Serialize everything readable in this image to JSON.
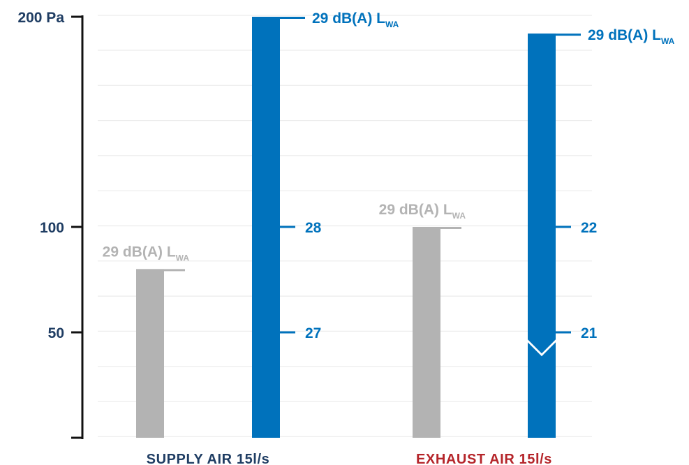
{
  "colors": {
    "axis": "#111111",
    "axis_label": "#1f3d63",
    "grid": "#ececec",
    "grey_bar": "#b3b3b3",
    "blue_bar": "#0072bc",
    "supply_label": "#1f3d63",
    "exhaust_label": "#b5252a"
  },
  "chart_data": {
    "type": "bar",
    "categories": [
      "SUPPLY AIR 15l/s",
      "EXHAUST AIR 15l/s"
    ],
    "y_axis": {
      "scale": "pressure (Pa)",
      "ticks": [
        {
          "value": 200,
          "label": "200 Pa"
        },
        {
          "value": 100,
          "label": "100"
        },
        {
          "value": 50,
          "label": "50"
        }
      ],
      "ylim": [
        0,
        200
      ]
    },
    "bars": [
      {
        "category_index": 0,
        "kind": "grey",
        "top": 80,
        "sound_label": {
          "main": "29 dB(A) L",
          "sub": "WA"
        }
      },
      {
        "category_index": 0,
        "kind": "blue",
        "top": 200,
        "sound_label": {
          "main": "29 dB(A) L",
          "sub": "WA"
        },
        "scale_ticks": [
          {
            "value": 100,
            "label": "28"
          },
          {
            "value": 50,
            "label": "27"
          }
        ]
      },
      {
        "category_index": 1,
        "kind": "grey",
        "top": 100,
        "sound_label": {
          "main": "29 dB(A) L",
          "sub": "WA"
        }
      },
      {
        "category_index": 1,
        "kind": "blue",
        "top": 192,
        "notch_at": 40,
        "sound_label": {
          "main": "29 dB(A) L",
          "sub": "WA"
        },
        "scale_ticks": [
          {
            "value": 100,
            "label": "22"
          },
          {
            "value": 50,
            "label": "21"
          }
        ]
      }
    ],
    "grid": true
  }
}
